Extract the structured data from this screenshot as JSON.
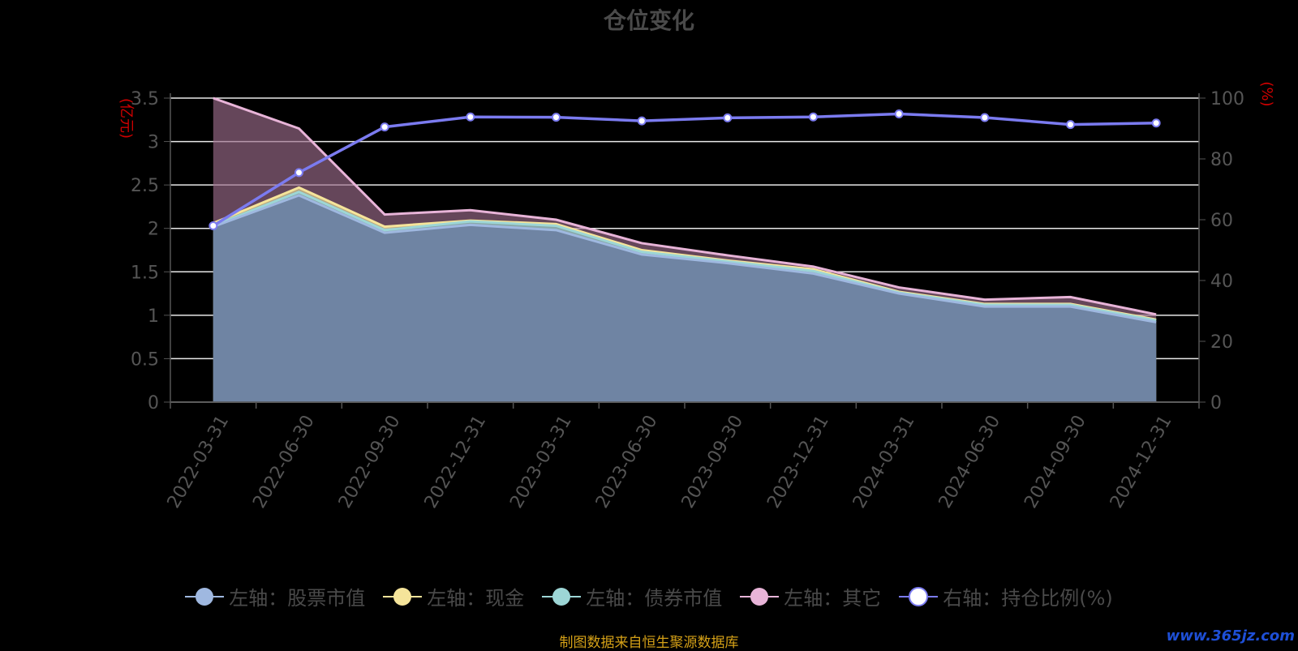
{
  "chart_data": {
    "type": "area",
    "title": "仓位变化",
    "categories": [
      "2022-03-31",
      "2022-06-30",
      "2022-09-30",
      "2022-12-31",
      "2023-03-31",
      "2023-06-30",
      "2023-09-30",
      "2023-12-31",
      "2024-03-31",
      "2024-06-30",
      "2024-09-30",
      "2024-12-31"
    ],
    "left_axis": {
      "label": "(亿元)",
      "ylim": [
        0,
        3.5
      ],
      "ticks": [
        "0",
        "0.5",
        "1",
        "1.5",
        "2",
        "2.5",
        "3",
        "3.5"
      ]
    },
    "right_axis": {
      "label": "(%)",
      "ylim": [
        0,
        100
      ],
      "ticks": [
        "0",
        "20",
        "40",
        "60",
        "80",
        "100"
      ]
    },
    "series": [
      {
        "name": "左轴：股票市值",
        "axis": "left",
        "color": "#9fb8e0",
        "values": [
          2.02,
          2.38,
          1.95,
          2.04,
          1.98,
          1.7,
          1.6,
          1.48,
          1.25,
          1.1,
          1.1,
          0.92
        ]
      },
      {
        "name": "左轴：现金",
        "axis": "left",
        "color": "#f5e49a",
        "values": [
          2.06,
          2.47,
          2.02,
          2.09,
          2.05,
          1.75,
          1.63,
          1.53,
          1.27,
          1.13,
          1.13,
          0.95
        ]
      },
      {
        "name": "左轴：债券市值",
        "axis": "left",
        "color": "#9dd6d6",
        "values": [
          2.03,
          2.42,
          1.98,
          2.08,
          2.03,
          1.73,
          1.62,
          1.51,
          1.26,
          1.12,
          1.12,
          0.94
        ]
      },
      {
        "name": "左轴：其它",
        "axis": "left",
        "color": "#e8b4d8",
        "values": [
          3.5,
          3.15,
          2.16,
          2.21,
          2.1,
          1.83,
          1.69,
          1.56,
          1.32,
          1.18,
          1.21,
          1.01
        ]
      },
      {
        "name": "右轴：持仓比例(%)",
        "axis": "right",
        "color": "#7b7bf0",
        "values": [
          58.0,
          75.5,
          90.5,
          93.8,
          93.7,
          92.5,
          93.5,
          93.8,
          94.8,
          93.6,
          91.3,
          91.8
        ]
      }
    ],
    "grid": true,
    "legend_position": "bottom"
  },
  "footer": {
    "source": "制图数据来自恒生聚源数据库",
    "watermark": "www.365jz.com"
  }
}
